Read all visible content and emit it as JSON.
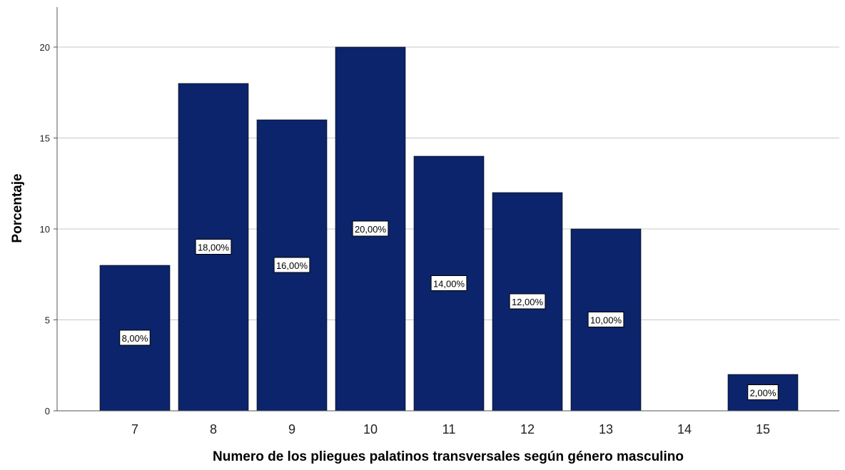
{
  "chart_data": {
    "type": "bar",
    "title": "",
    "xlabel": "Numero de los pliegues palatinos transversales según  género masculino",
    "ylabel": "Porcentaje",
    "categories": [
      "7",
      "8",
      "9",
      "10",
      "11",
      "12",
      "13",
      "14",
      "15"
    ],
    "values": [
      8,
      18,
      16,
      20,
      14,
      12,
      10,
      0,
      2
    ],
    "data_labels": [
      "8,00%",
      "18,00%",
      "16,00%",
      "20,00%",
      "14,00%",
      "12,00%",
      "10,00%",
      "",
      "2,00%"
    ],
    "yticks": [
      "0",
      "5",
      "10",
      "15",
      "20"
    ],
    "ylim": [
      0,
      22
    ],
    "grid": true,
    "colors": {
      "bar": "#0b246b",
      "grid": "#c8c8c8",
      "axis": "#555555"
    }
  }
}
